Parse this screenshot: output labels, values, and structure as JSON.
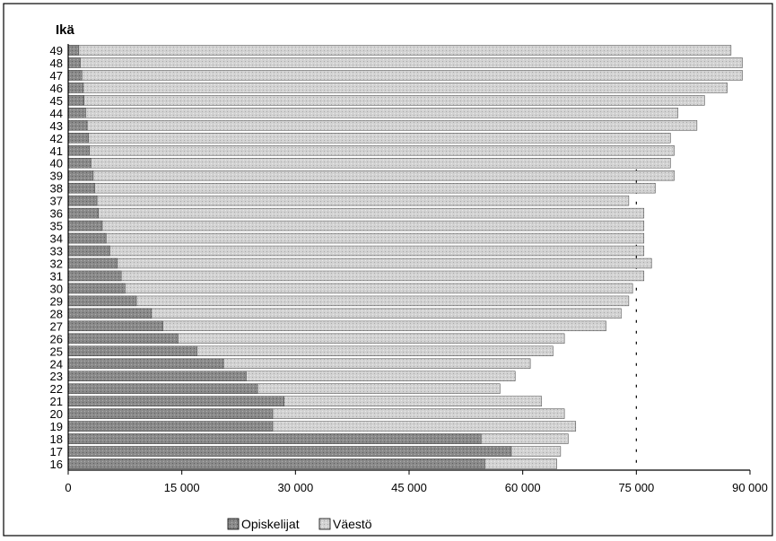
{
  "chart_data": {
    "type": "bar",
    "orientation": "horizontal",
    "stacked": false,
    "overlay": true,
    "ylabel": "Ikä",
    "categories": [
      "16",
      "17",
      "18",
      "19",
      "20",
      "21",
      "22",
      "23",
      "24",
      "25",
      "26",
      "27",
      "28",
      "29",
      "30",
      "31",
      "32",
      "33",
      "34",
      "35",
      "36",
      "37",
      "38",
      "39",
      "40",
      "41",
      "42",
      "43",
      "44",
      "45",
      "46",
      "47",
      "48",
      "49"
    ],
    "series": [
      {
        "name": "Opiskelijat",
        "color": "#8a8a8a",
        "values": [
          55000,
          58500,
          54500,
          27000,
          27000,
          28500,
          25000,
          23500,
          20500,
          17000,
          14500,
          12500,
          11000,
          9000,
          7500,
          7000,
          6500,
          5500,
          5000,
          4500,
          4000,
          3800,
          3500,
          3300,
          3000,
          2800,
          2700,
          2500,
          2300,
          2100,
          2000,
          1800,
          1600,
          1400
        ]
      },
      {
        "name": "Väestö",
        "color": "#d2d2d2",
        "values": [
          64500,
          65000,
          66000,
          67000,
          65500,
          62500,
          57000,
          59000,
          61000,
          64000,
          65500,
          71000,
          73000,
          74000,
          74500,
          76000,
          77000,
          76000,
          76000,
          76000,
          76000,
          74000,
          77500,
          80000,
          79500,
          80000,
          79500,
          83000,
          80500,
          84000,
          87000,
          89000,
          89000,
          87500
        ]
      }
    ],
    "x_ticks": [
      "0",
      "15 000",
      "30 000",
      "45 000",
      "60 000",
      "75 000",
      "90 000"
    ],
    "x_tick_values": [
      0,
      15000,
      30000,
      45000,
      60000,
      75000,
      90000
    ],
    "xlim": [
      0,
      90000
    ],
    "reference_line": {
      "value": 75000,
      "style": "dotted"
    },
    "legend": {
      "placement": "bottom-center"
    },
    "grid": false
  }
}
